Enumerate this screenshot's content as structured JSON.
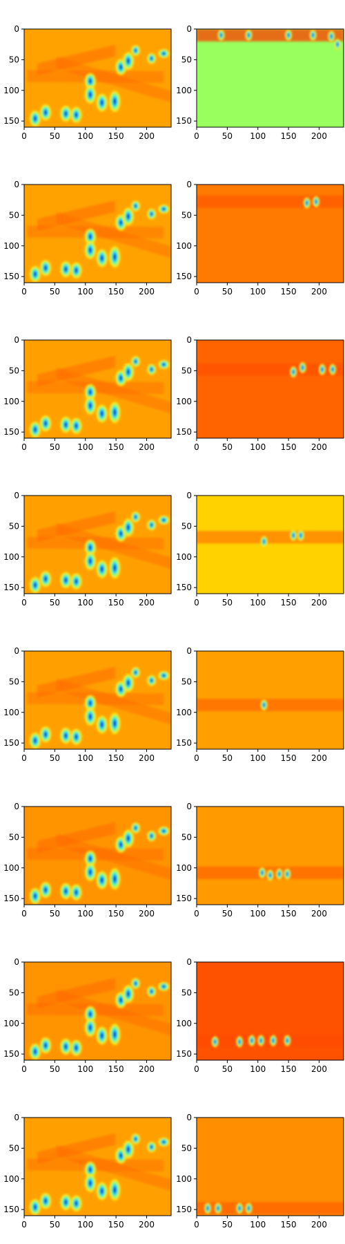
{
  "figure": {
    "background": "#ffffff"
  },
  "chart_data": {
    "type": "heatmap",
    "layout": {
      "rows": 8,
      "cols": 2
    },
    "colormap": "jet",
    "image_size": {
      "width": 240,
      "height": 160
    },
    "axes_common": {
      "xlim": [
        0,
        240
      ],
      "ylim": [
        160,
        0
      ],
      "x_ticks": [
        0,
        50,
        100,
        150,
        200
      ],
      "y_ticks": [
        0,
        50,
        100,
        150
      ],
      "x_tick_labels": [
        "0",
        "50",
        "100",
        "150",
        "200"
      ],
      "y_tick_labels": [
        "0",
        "50",
        "100",
        "150"
      ]
    },
    "pairs": [
      {
        "left_bg": "#ffa200",
        "right_bg": "#99ff5e",
        "row_pixel": 10,
        "right_blobs": [
          [
            40,
            10
          ],
          [
            85,
            10
          ],
          [
            150,
            10
          ],
          [
            190,
            10
          ],
          [
            220,
            12
          ],
          [
            230,
            25
          ]
        ]
      },
      {
        "left_bg": "#ffa200",
        "right_bg": "#ff7a00",
        "row_pixel": 28,
        "right_blobs": [
          [
            180,
            30
          ],
          [
            195,
            28
          ]
        ]
      },
      {
        "left_bg": "#ffa000",
        "right_bg": "#ff6400",
        "row_pixel": 48,
        "right_blobs": [
          [
            158,
            52
          ],
          [
            173,
            45
          ],
          [
            205,
            48
          ],
          [
            222,
            48
          ]
        ]
      },
      {
        "left_bg": "#ffa000",
        "right_bg": "#ffd200",
        "row_pixel": 68,
        "right_blobs": [
          [
            110,
            75
          ],
          [
            158,
            65
          ],
          [
            170,
            65
          ]
        ]
      },
      {
        "left_bg": "#ffa000",
        "right_bg": "#ffa000",
        "row_pixel": 88,
        "right_blobs": [
          [
            110,
            88
          ]
        ]
      },
      {
        "left_bg": "#ff9400",
        "right_bg": "#ff9a00",
        "row_pixel": 108,
        "right_blobs": [
          [
            107,
            108
          ],
          [
            120,
            112
          ],
          [
            135,
            110
          ],
          [
            148,
            110
          ]
        ]
      },
      {
        "left_bg": "#ff9400",
        "right_bg": "#ff5200",
        "row_pixel": 128,
        "right_blobs": [
          [
            30,
            130
          ],
          [
            70,
            130
          ],
          [
            90,
            128
          ],
          [
            105,
            128
          ],
          [
            125,
            128
          ],
          [
            148,
            128
          ]
        ]
      },
      {
        "left_bg": "#ffa000",
        "right_bg": "#ff8e00",
        "row_pixel": 148,
        "right_blobs": [
          [
            18,
            148
          ],
          [
            35,
            148
          ],
          [
            70,
            148
          ],
          [
            85,
            148
          ]
        ]
      }
    ]
  }
}
